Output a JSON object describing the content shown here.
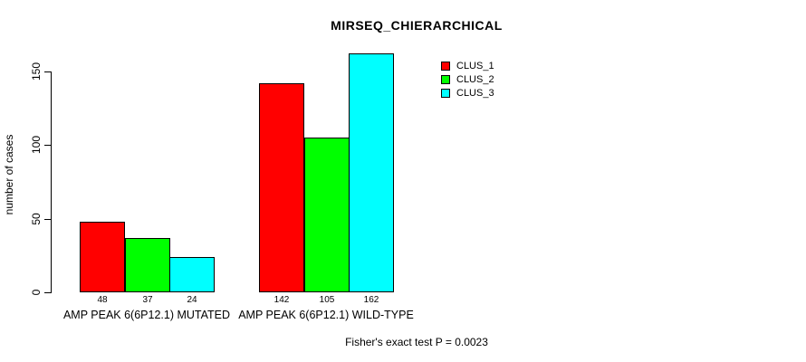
{
  "title": "MIRSEQ_CHIERARCHICAL",
  "footer": "Fisher's exact test P = 0.0023",
  "chart_data": {
    "type": "bar",
    "title": "MIRSEQ_CHIERARCHICAL",
    "xlabel": "",
    "ylabel": "number of cases",
    "ylim": [
      0,
      162
    ],
    "yticks": [
      0,
      50,
      100,
      150
    ],
    "grid": false,
    "legend_position": "top-right",
    "show_value_labels": true,
    "categories": [
      "AMP PEAK 6(6P12.1) MUTATED",
      "AMP PEAK 6(6P12.1) WILD-TYPE"
    ],
    "series": [
      {
        "name": "CLUS_1",
        "color": "#FF0000",
        "values": [
          48,
          142
        ]
      },
      {
        "name": "CLUS_2",
        "color": "#00FF00",
        "values": [
          37,
          105
        ]
      },
      {
        "name": "CLUS_3",
        "color": "#00FFFF",
        "values": [
          24,
          162
        ]
      }
    ],
    "annotation": "Fisher's exact test P = 0.0023"
  }
}
